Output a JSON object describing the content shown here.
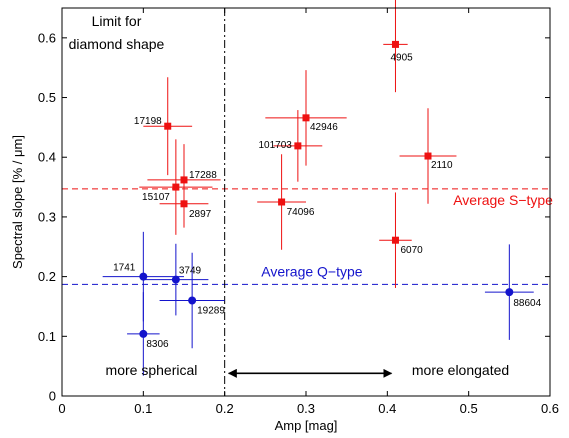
{
  "chart_data": {
    "type": "scatter",
    "xlabel": "Amp [mag]",
    "ylabel": "Spectral slope [% / μm]",
    "xlim": [
      0,
      0.6
    ],
    "ylim": [
      0,
      0.65
    ],
    "xticks": [
      "0",
      "0.1",
      "0.2",
      "0.3",
      "0.4",
      "0.5",
      "0.6"
    ],
    "yticks": [
      "0",
      "0.1",
      "0.2",
      "0.3",
      "0.4",
      "0.5",
      "0.6"
    ],
    "grid": false,
    "colors": {
      "s_type": "#ee1111",
      "q_type": "#1414cc"
    },
    "series": [
      {
        "group": "s_type",
        "marker": "square",
        "points": [
          {
            "label": "17198",
            "x": 0.13,
            "y": 0.452,
            "xerr": 0.03,
            "yerr": 0.082
          },
          {
            "label": "17288",
            "x": 0.15,
            "y": 0.362,
            "xerr": 0.045,
            "yerr": 0.06
          },
          {
            "label": "15107",
            "x": 0.14,
            "y": 0.35,
            "xerr": 0.045,
            "yerr": 0.08
          },
          {
            "label": "2897",
            "x": 0.15,
            "y": 0.322,
            "xerr": 0.03,
            "yerr": 0.04
          },
          {
            "label": "101703",
            "x": 0.29,
            "y": 0.419,
            "xerr": 0.03,
            "yerr": 0.06
          },
          {
            "label": "42946",
            "x": 0.3,
            "y": 0.466,
            "xerr": 0.05,
            "yerr": 0.08
          },
          {
            "label": "74096",
            "x": 0.27,
            "y": 0.325,
            "xerr": 0.03,
            "yerr": 0.08
          },
          {
            "label": "4905",
            "x": 0.41,
            "y": 0.589,
            "xerr": 0.015,
            "yerr": 0.08
          },
          {
            "label": "2110",
            "x": 0.45,
            "y": 0.402,
            "xerr": 0.035,
            "yerr": 0.08
          },
          {
            "label": "6070",
            "x": 0.41,
            "y": 0.261,
            "xerr": 0.02,
            "yerr": 0.08
          }
        ]
      },
      {
        "group": "q_type",
        "marker": "circle",
        "points": [
          {
            "label": "1741",
            "x": 0.1,
            "y": 0.2,
            "xerr": 0.05,
            "yerr": 0.075
          },
          {
            "label": "3749",
            "x": 0.14,
            "y": 0.195,
            "xerr": 0.04,
            "yerr": 0.06
          },
          {
            "label": "19289",
            "x": 0.16,
            "y": 0.16,
            "xerr": 0.04,
            "yerr": 0.08
          },
          {
            "label": "8306",
            "x": 0.1,
            "y": 0.104,
            "xerr": 0.02,
            "yerr": 0.07
          },
          {
            "label": "88604",
            "x": 0.55,
            "y": 0.174,
            "xerr": 0.03,
            "yerr": 0.08
          }
        ]
      }
    ],
    "reference_lines": [
      {
        "orientation": "horizontal",
        "y": 0.347,
        "group": "s_type",
        "label": "Average S−type"
      },
      {
        "orientation": "horizontal",
        "y": 0.187,
        "group": "q_type",
        "label": "Average Q−type"
      },
      {
        "orientation": "vertical",
        "x": 0.2,
        "color": "#000000",
        "label": ""
      }
    ],
    "annotations": [
      {
        "text_lines": [
          "Limit for",
          "diamond shape"
        ],
        "x": 0.067,
        "y": 0.62
      },
      {
        "text_lines": [
          "more spherical"
        ],
        "x": 0.11,
        "y": 0.035
      },
      {
        "text_lines": [
          "more elongated"
        ],
        "x": 0.49,
        "y": 0.035
      }
    ],
    "arrow": {
      "x_start": 0.205,
      "x_end": 0.405,
      "y": 0.038
    }
  }
}
